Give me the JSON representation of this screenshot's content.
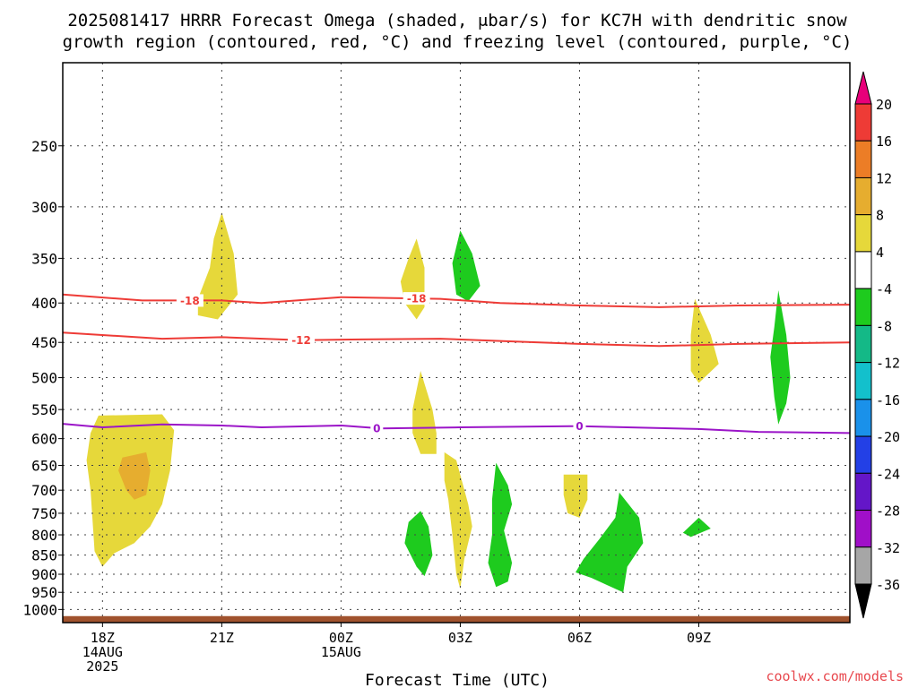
{
  "chart_data": {
    "type": "heatmap",
    "title_line1": "2025081417 HRRR Forecast Omega (shaded, μbar/s) for KC7H with dendritic snow",
    "title_line2": "growth region (contoured, red, °C) and freezing level (contoured, purple, °C)",
    "xlabel": "Forecast Time (UTC)",
    "credit": "coolwx.com/models",
    "xlim_hours": [
      -1,
      18.8
    ],
    "ylim_hpa": [
      1040,
      195
    ],
    "y_scale": "log",
    "grid": true,
    "y_ticks": [
      250,
      300,
      350,
      400,
      450,
      500,
      550,
      600,
      650,
      700,
      750,
      800,
      850,
      900,
      950,
      1000
    ],
    "x_ticks": [
      {
        "hour": 0,
        "lines": [
          "18Z",
          "14AUG",
          "2025"
        ]
      },
      {
        "hour": 3,
        "lines": [
          "21Z"
        ]
      },
      {
        "hour": 6,
        "lines": [
          "00Z",
          "15AUG"
        ]
      },
      {
        "hour": 9,
        "lines": [
          "03Z"
        ]
      },
      {
        "hour": 12,
        "lines": [
          "06Z"
        ]
      },
      {
        "hour": 15,
        "lines": [
          "09Z"
        ]
      }
    ],
    "colorbar": {
      "labels": [
        "20",
        "16",
        "12",
        "8",
        "4",
        "-4",
        "-8",
        "-12",
        "-16",
        "-20",
        "-24",
        "-28",
        "-32",
        "-36"
      ],
      "bins": [
        {
          "color": "#e8007a"
        },
        {
          "color": "#ee3b36"
        },
        {
          "color": "#ec7d26"
        },
        {
          "color": "#e6ad2f"
        },
        {
          "color": "#e6d83a"
        },
        {
          "color": "#ffffff"
        },
        {
          "color": "#1ecb1e"
        },
        {
          "color": "#14b987"
        },
        {
          "color": "#13c0cc"
        },
        {
          "color": "#1a91ea"
        },
        {
          "color": "#2340e6"
        },
        {
          "color": "#6416c8"
        },
        {
          "color": "#a00fc8"
        },
        {
          "color": "#a6a6a6"
        },
        {
          "color": "#000000"
        }
      ]
    },
    "omega_regions": [
      {
        "category": "4 to 8",
        "color": "#e6d83a",
        "pts": [
          [
            -0.1,
            560
          ],
          [
            1.5,
            558
          ],
          [
            1.8,
            585
          ],
          [
            1.7,
            660
          ],
          [
            1.5,
            730
          ],
          [
            1.2,
            780
          ],
          [
            0.8,
            820
          ],
          [
            0.3,
            845
          ],
          [
            0.0,
            880
          ],
          [
            -0.2,
            840
          ],
          [
            -0.3,
            700
          ],
          [
            -0.4,
            640
          ],
          [
            -0.3,
            590
          ]
        ]
      },
      {
        "category": "8 to 12",
        "color": "#e6ad2f",
        "pts": [
          [
            0.5,
            635
          ],
          [
            1.1,
            625
          ],
          [
            1.2,
            660
          ],
          [
            1.1,
            710
          ],
          [
            0.8,
            720
          ],
          [
            0.6,
            700
          ],
          [
            0.4,
            660
          ]
        ]
      },
      {
        "category": "4 to 8",
        "color": "#e6d83a",
        "pts": [
          [
            3.0,
            305
          ],
          [
            3.3,
            345
          ],
          [
            3.4,
            390
          ],
          [
            2.9,
            420
          ],
          [
            2.4,
            415
          ],
          [
            2.4,
            395
          ],
          [
            2.7,
            360
          ],
          [
            2.8,
            330
          ]
        ]
      },
      {
        "category": "4 to 8",
        "color": "#e6d83a",
        "pts": [
          [
            7.9,
            330
          ],
          [
            8.1,
            360
          ],
          [
            8.1,
            405
          ],
          [
            7.9,
            420
          ],
          [
            7.6,
            400
          ],
          [
            7.5,
            375
          ],
          [
            7.7,
            350
          ]
        ]
      },
      {
        "category": "-4 to -8",
        "color": "#1ecb1e",
        "pts": [
          [
            9.0,
            322
          ],
          [
            9.3,
            345
          ],
          [
            9.5,
            380
          ],
          [
            9.2,
            398
          ],
          [
            8.9,
            390
          ],
          [
            8.8,
            355
          ]
        ]
      },
      {
        "category": "4 to 8",
        "color": "#e6d83a",
        "pts": [
          [
            8.0,
            490
          ],
          [
            8.3,
            550
          ],
          [
            8.4,
            590
          ],
          [
            8.4,
            628
          ],
          [
            8.0,
            628
          ],
          [
            7.8,
            590
          ],
          [
            7.8,
            550
          ]
        ]
      },
      {
        "category": "4 to 8",
        "color": "#e6d83a",
        "pts": [
          [
            8.6,
            625
          ],
          [
            8.9,
            640
          ],
          [
            9.2,
            730
          ],
          [
            9.3,
            780
          ],
          [
            9.1,
            860
          ],
          [
            9.0,
            940
          ],
          [
            8.9,
            900
          ],
          [
            8.8,
            800
          ],
          [
            8.7,
            720
          ],
          [
            8.6,
            680
          ]
        ]
      },
      {
        "category": "-4 to -8",
        "color": "#1ecb1e",
        "pts": [
          [
            8.0,
            745
          ],
          [
            8.2,
            780
          ],
          [
            8.3,
            850
          ],
          [
            8.1,
            905
          ],
          [
            7.9,
            880
          ],
          [
            7.6,
            820
          ],
          [
            7.7,
            770
          ]
        ]
      },
      {
        "category": "-4 to -8",
        "color": "#1ecb1e",
        "pts": [
          [
            9.9,
            645
          ],
          [
            10.2,
            690
          ],
          [
            10.3,
            730
          ],
          [
            10.1,
            790
          ],
          [
            10.3,
            870
          ],
          [
            10.2,
            920
          ],
          [
            9.9,
            935
          ],
          [
            9.7,
            870
          ],
          [
            9.8,
            800
          ],
          [
            9.8,
            720
          ]
        ]
      },
      {
        "category": "4 to 8",
        "color": "#e6d83a",
        "pts": [
          [
            11.6,
            668
          ],
          [
            12.2,
            668
          ],
          [
            12.2,
            720
          ],
          [
            12.0,
            760
          ],
          [
            11.7,
            750
          ],
          [
            11.6,
            710
          ]
        ]
      },
      {
        "category": "-4 to -8",
        "color": "#1ecb1e",
        "pts": [
          [
            13.0,
            705
          ],
          [
            13.5,
            760
          ],
          [
            13.6,
            820
          ],
          [
            13.2,
            880
          ],
          [
            13.1,
            950
          ],
          [
            12.7,
            930
          ],
          [
            12.3,
            910
          ],
          [
            11.9,
            895
          ],
          [
            12.1,
            860
          ],
          [
            12.5,
            810
          ],
          [
            12.9,
            760
          ]
        ]
      },
      {
        "category": "4 to 8",
        "color": "#e6d83a",
        "pts": [
          [
            14.9,
            395
          ],
          [
            15.3,
            440
          ],
          [
            15.5,
            480
          ],
          [
            15.0,
            508
          ],
          [
            14.8,
            490
          ],
          [
            14.8,
            440
          ]
        ]
      },
      {
        "category": "-4 to -8",
        "color": "#1ecb1e",
        "pts": [
          [
            15.0,
            760
          ],
          [
            15.3,
            785
          ],
          [
            14.8,
            805
          ],
          [
            14.6,
            795
          ]
        ]
      },
      {
        "category": "-4 to -8",
        "color": "#1ecb1e",
        "pts": [
          [
            17.0,
            385
          ],
          [
            17.2,
            440
          ],
          [
            17.3,
            500
          ],
          [
            17.2,
            540
          ],
          [
            17.0,
            575
          ],
          [
            16.9,
            530
          ],
          [
            16.8,
            470
          ],
          [
            16.9,
            430
          ]
        ]
      }
    ],
    "contours": [
      {
        "kind": "dendritic_snow_growth",
        "temp_c": -18,
        "label": "-18",
        "color": "#ee3b36",
        "pts": [
          [
            -1,
            390
          ],
          [
            1.0,
            397
          ],
          [
            3.0,
            397
          ],
          [
            4.0,
            400
          ],
          [
            6.0,
            393
          ],
          [
            8.5,
            395
          ],
          [
            10,
            400
          ],
          [
            12,
            403
          ],
          [
            14,
            405
          ],
          [
            16,
            403
          ],
          [
            18.8,
            402
          ]
        ],
        "label_positions": [
          2.2,
          7.9
        ]
      },
      {
        "kind": "dendritic_snow_growth",
        "temp_c": -12,
        "label": "-12",
        "color": "#ee3b36",
        "pts": [
          [
            -1,
            437
          ],
          [
            1.5,
            445
          ],
          [
            3.0,
            443
          ],
          [
            5.0,
            447
          ],
          [
            6.5,
            446
          ],
          [
            8.5,
            445
          ],
          [
            10,
            448
          ],
          [
            12,
            452
          ],
          [
            14,
            455
          ],
          [
            16,
            452
          ],
          [
            18.8,
            450
          ]
        ],
        "label_positions": [
          5.0
        ]
      },
      {
        "kind": "freezing_level",
        "temp_c": 0,
        "label": "0",
        "color": "#9b15c8",
        "pts": [
          [
            -1,
            574
          ],
          [
            0.0,
            580
          ],
          [
            1.5,
            575
          ],
          [
            3.0,
            577
          ],
          [
            4.0,
            580
          ],
          [
            6.0,
            577
          ],
          [
            7.0,
            582
          ],
          [
            9.0,
            580
          ],
          [
            12.0,
            578
          ],
          [
            15.0,
            583
          ],
          [
            16.5,
            588
          ],
          [
            18.8,
            590
          ]
        ],
        "label_positions": [
          6.9,
          12.0
        ]
      }
    ],
    "terrain": {
      "color": "#a0522d",
      "top_hpa": 1020
    }
  }
}
